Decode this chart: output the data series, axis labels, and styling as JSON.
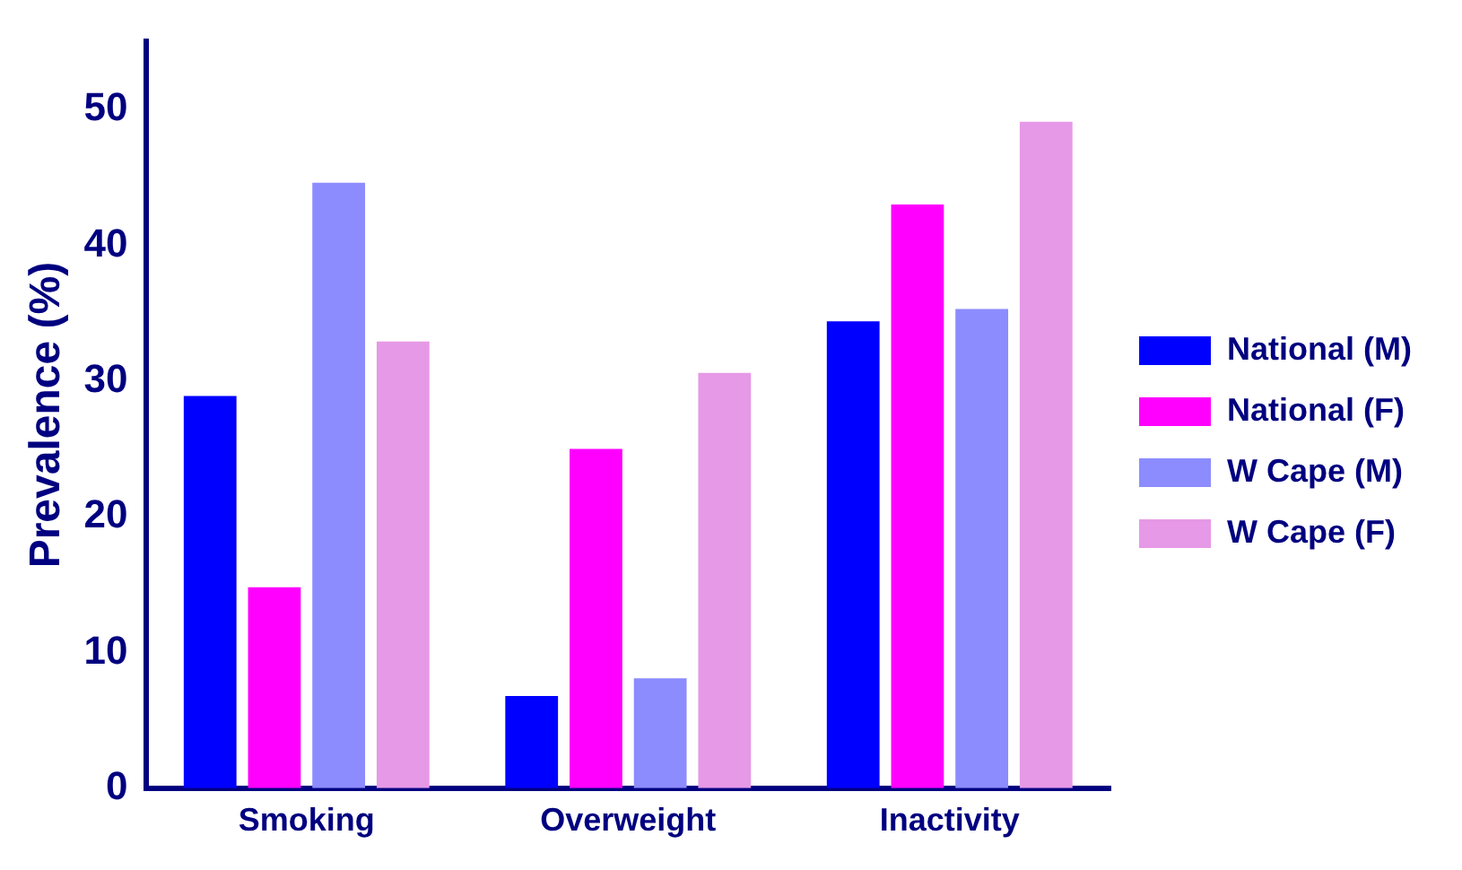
{
  "chart_data": {
    "type": "bar",
    "ylabel": "Prevalence (%)",
    "categories": [
      "Smoking",
      "Overweight",
      "Inactivity"
    ],
    "series": [
      {
        "name": "National (M)",
        "color": "#0000ff",
        "values": [
          28.9,
          6.8,
          34.4
        ]
      },
      {
        "name": "National (F)",
        "color": "#ff00ff",
        "values": [
          14.8,
          25.0,
          43.0
        ]
      },
      {
        "name": "W Cape (M)",
        "color": "#8c8cff",
        "values": [
          44.6,
          8.1,
          35.3
        ]
      },
      {
        "name": "W Cape (F)",
        "color": "#e699e6",
        "values": [
          32.9,
          30.6,
          49.1
        ]
      }
    ],
    "ylim": [
      0,
      55
    ],
    "yticks": [
      0,
      10,
      20,
      30,
      40,
      50
    ],
    "grid": false,
    "legend": "right"
  }
}
